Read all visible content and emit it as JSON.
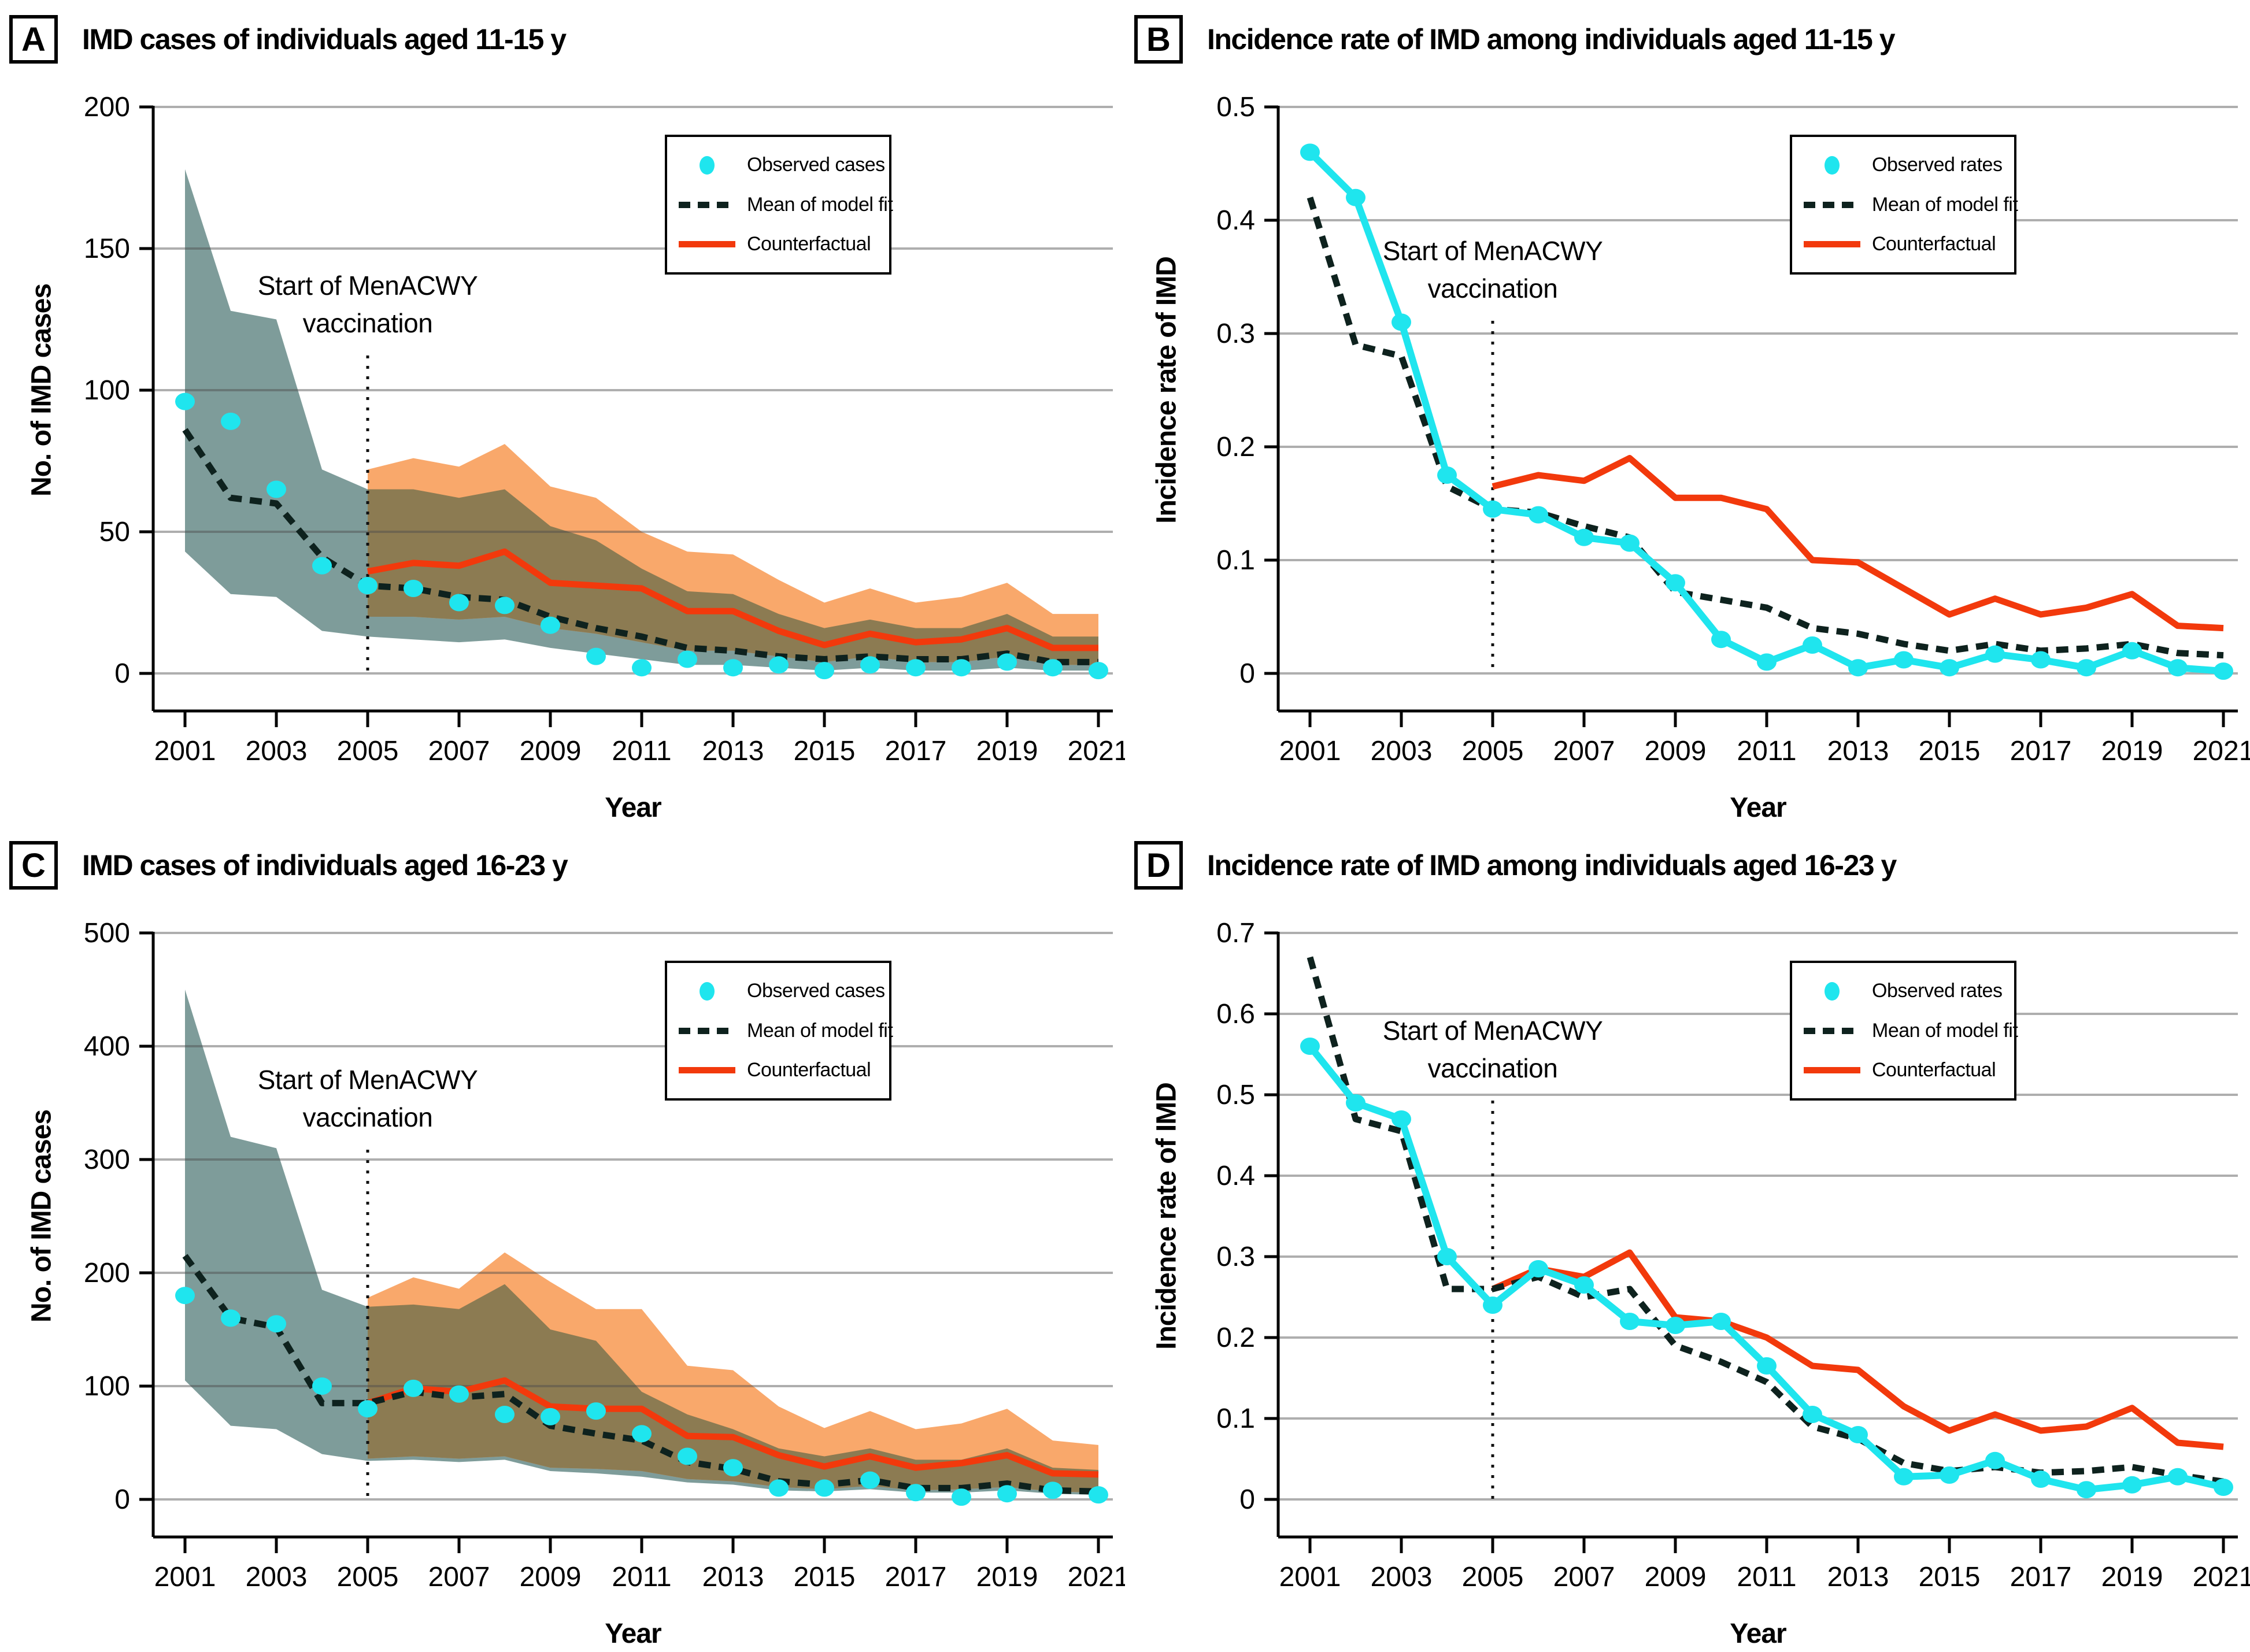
{
  "figure": {
    "background": "#FFFFFF",
    "annotation_text": "Start of MenACWY vaccination",
    "colors": {
      "observed": "#1FE5EE",
      "model_fit": "#0E221E",
      "counterfactual": "#F2390C",
      "fit_band": "#7E9C9A",
      "counterfactual_band": "#F9A86B",
      "band_overlap": "#8C7B52",
      "gridline": "#ABABAB",
      "axis": "#000000"
    }
  },
  "chart_data": [
    {
      "panel": "A",
      "type": "line",
      "title": "IMD cases of individuals aged 11-15 y",
      "xlabel": "Year",
      "ylabel": "No. of IMD cases",
      "x": [
        2001,
        2002,
        2003,
        2004,
        2005,
        2006,
        2007,
        2008,
        2009,
        2010,
        2011,
        2012,
        2013,
        2014,
        2015,
        2016,
        2017,
        2018,
        2019,
        2020,
        2021
      ],
      "x_ticks": [
        2001,
        2003,
        2005,
        2007,
        2009,
        2011,
        2013,
        2015,
        2017,
        2019,
        2021
      ],
      "ylim": [
        0,
        200
      ],
      "y_ticks": [
        0,
        50,
        100,
        150,
        200
      ],
      "y_tick_labels": [
        "0",
        "50",
        "100",
        "150",
        "200"
      ],
      "grid": true,
      "legend_position": "top-right",
      "vline_year": 2005,
      "annotation_lines": [
        "Start of MenACWY",
        "vaccination"
      ],
      "legend": [
        {
          "label": "Observed cases",
          "marker": "dot"
        },
        {
          "label": "Mean of model fit",
          "marker": "dashed"
        },
        {
          "label": "Counterfactual",
          "marker": "line"
        }
      ],
      "observed": {
        "connect": false,
        "values": [
          96,
          89,
          65,
          38,
          31,
          30,
          25,
          24,
          17,
          6,
          2,
          5,
          2,
          3,
          1,
          3,
          2,
          2,
          4,
          2,
          1
        ]
      },
      "fit": {
        "values": [
          86,
          62,
          60,
          41,
          31,
          30,
          27,
          26,
          20,
          16,
          13,
          9,
          8,
          6,
          5,
          6,
          5,
          5,
          7,
          4,
          4
        ]
      },
      "band_fit": {
        "upper": [
          178,
          128,
          125,
          72,
          65,
          65,
          62,
          65,
          52,
          47,
          37,
          29,
          28,
          21,
          16,
          19,
          16,
          16,
          21,
          13,
          13
        ],
        "lower": [
          43,
          28,
          27,
          15,
          13,
          12,
          11,
          12,
          9,
          7,
          5,
          3,
          3,
          2,
          1,
          2,
          1,
          1,
          2,
          1,
          1
        ]
      },
      "cf": {
        "x_start": 2005,
        "values": [
          36,
          39,
          38,
          43,
          32,
          31,
          30,
          22,
          22,
          15,
          10,
          14,
          11,
          12,
          16,
          9,
          9
        ]
      },
      "band_cf": {
        "x_start": 2005,
        "upper": [
          72,
          76,
          73,
          81,
          66,
          62,
          50,
          43,
          42,
          33,
          25,
          30,
          25,
          27,
          32,
          21,
          21
        ],
        "lower": [
          20,
          20,
          19,
          20,
          16,
          14,
          11,
          8,
          8,
          6,
          4,
          6,
          4,
          4,
          6,
          3,
          3
        ]
      }
    },
    {
      "panel": "B",
      "type": "line",
      "title": "Incidence rate of IMD among individuals aged 11-15 y",
      "xlabel": "Year",
      "ylabel": "Incidence rate of IMD",
      "x": [
        2001,
        2002,
        2003,
        2004,
        2005,
        2006,
        2007,
        2008,
        2009,
        2010,
        2011,
        2012,
        2013,
        2014,
        2015,
        2016,
        2017,
        2018,
        2019,
        2020,
        2021
      ],
      "x_ticks": [
        2001,
        2003,
        2005,
        2007,
        2009,
        2011,
        2013,
        2015,
        2017,
        2019,
        2021
      ],
      "ylim": [
        0,
        0.5
      ],
      "y_ticks": [
        0,
        0.1,
        0.2,
        0.3,
        0.4,
        0.5
      ],
      "y_tick_labels": [
        "0",
        "0.1",
        "0.2",
        "0.3",
        "0.4",
        "0.5"
      ],
      "grid": true,
      "legend_position": "top-right",
      "vline_year": 2005,
      "annotation_lines": [
        "Start of MenACWY",
        "vaccination"
      ],
      "legend": [
        {
          "label": "Observed rates",
          "marker": "dot"
        },
        {
          "label": "Mean of model fit",
          "marker": "dashed"
        },
        {
          "label": "Counterfactual",
          "marker": "line"
        }
      ],
      "observed": {
        "connect": true,
        "values": [
          0.46,
          0.42,
          0.31,
          0.175,
          0.145,
          0.14,
          0.12,
          0.115,
          0.08,
          0.03,
          0.01,
          0.025,
          0.005,
          0.012,
          0.005,
          0.017,
          0.012,
          0.005,
          0.02,
          0.005,
          0.002
        ]
      },
      "fit": {
        "values": [
          0.42,
          0.29,
          0.28,
          0.165,
          0.145,
          0.142,
          0.13,
          0.12,
          0.072,
          0.065,
          0.058,
          0.04,
          0.035,
          0.026,
          0.02,
          0.026,
          0.02,
          0.022,
          0.026,
          0.018,
          0.016
        ]
      },
      "cf": {
        "x_start": 2005,
        "values": [
          0.165,
          0.175,
          0.17,
          0.19,
          0.155,
          0.155,
          0.145,
          0.1,
          0.098,
          0.075,
          0.052,
          0.066,
          0.052,
          0.058,
          0.07,
          0.042,
          0.04
        ]
      }
    },
    {
      "panel": "C",
      "type": "line",
      "title": "IMD cases of individuals aged 16-23 y",
      "xlabel": "Year",
      "ylabel": "No. of IMD cases",
      "x": [
        2001,
        2002,
        2003,
        2004,
        2005,
        2006,
        2007,
        2008,
        2009,
        2010,
        2011,
        2012,
        2013,
        2014,
        2015,
        2016,
        2017,
        2018,
        2019,
        2020,
        2021
      ],
      "x_ticks": [
        2001,
        2003,
        2005,
        2007,
        2009,
        2011,
        2013,
        2015,
        2017,
        2019,
        2021
      ],
      "ylim": [
        0,
        500
      ],
      "y_ticks": [
        0,
        100,
        200,
        300,
        400,
        500
      ],
      "y_tick_labels": [
        "0",
        "100",
        "200",
        "300",
        "400",
        "500"
      ],
      "grid": true,
      "legend_position": "top-right",
      "vline_year": 2005,
      "annotation_lines": [
        "Start of MenACWY",
        "vaccination"
      ],
      "legend": [
        {
          "label": "Observed cases",
          "marker": "dot"
        },
        {
          "label": "Mean of model fit",
          "marker": "dashed"
        },
        {
          "label": "Counterfactual",
          "marker": "line"
        }
      ],
      "observed": {
        "connect": false,
        "values": [
          180,
          160,
          155,
          100,
          80,
          98,
          93,
          75,
          73,
          78,
          58,
          38,
          28,
          10,
          10,
          17,
          6,
          2,
          5,
          8,
          4
        ]
      },
      "fit": {
        "values": [
          215,
          160,
          152,
          85,
          85,
          95,
          90,
          93,
          65,
          58,
          52,
          33,
          27,
          16,
          13,
          17,
          10,
          10,
          14,
          8,
          7
        ]
      },
      "band_fit": {
        "upper": [
          450,
          320,
          310,
          185,
          170,
          172,
          168,
          190,
          150,
          140,
          95,
          75,
          62,
          45,
          38,
          45,
          35,
          35,
          45,
          28,
          26
        ],
        "lower": [
          105,
          65,
          62,
          40,
          34,
          35,
          33,
          35,
          25,
          23,
          20,
          15,
          13,
          8,
          7,
          9,
          6,
          6,
          8,
          5,
          4
        ]
      },
      "cf": {
        "x_start": 2005,
        "values": [
          85,
          98,
          95,
          105,
          82,
          80,
          80,
          56,
          55,
          39,
          29,
          38,
          28,
          32,
          39,
          23,
          22
        ]
      },
      "band_cf": {
        "x_start": 2005,
        "upper": [
          178,
          196,
          186,
          218,
          192,
          168,
          168,
          118,
          114,
          82,
          63,
          78,
          62,
          67,
          80,
          52,
          48
        ],
        "lower": [
          36,
          38,
          36,
          38,
          28,
          27,
          25,
          18,
          16,
          11,
          9,
          12,
          8,
          9,
          11,
          7,
          6
        ]
      }
    },
    {
      "panel": "D",
      "type": "line",
      "title": "Incidence rate of IMD among individuals aged 16-23 y",
      "xlabel": "Year",
      "ylabel": "Incidence rate of IMD",
      "x": [
        2001,
        2002,
        2003,
        2004,
        2005,
        2006,
        2007,
        2008,
        2009,
        2010,
        2011,
        2012,
        2013,
        2014,
        2015,
        2016,
        2017,
        2018,
        2019,
        2020,
        2021
      ],
      "x_ticks": [
        2001,
        2003,
        2005,
        2007,
        2009,
        2011,
        2013,
        2015,
        2017,
        2019,
        2021
      ],
      "ylim": [
        0,
        0.7
      ],
      "y_ticks": [
        0,
        0.1,
        0.2,
        0.3,
        0.4,
        0.5,
        0.6,
        0.7
      ],
      "y_tick_labels": [
        "0",
        "0.1",
        "0.2",
        "0.3",
        "0.4",
        "0.5",
        "0.6",
        "0.7"
      ],
      "grid": true,
      "legend_position": "top-right",
      "vline_year": 2005,
      "annotation_lines": [
        "Start of MenACWY",
        "vaccination"
      ],
      "legend": [
        {
          "label": "Observed rates",
          "marker": "dot"
        },
        {
          "label": "Mean of model fit",
          "marker": "dashed"
        },
        {
          "label": "Counterfactual",
          "marker": "line"
        }
      ],
      "observed": {
        "connect": true,
        "values": [
          0.56,
          0.49,
          0.47,
          0.3,
          0.24,
          0.285,
          0.265,
          0.22,
          0.215,
          0.22,
          0.165,
          0.105,
          0.08,
          0.028,
          0.03,
          0.048,
          0.025,
          0.012,
          0.018,
          0.028,
          0.015
        ]
      },
      "fit": {
        "values": [
          0.67,
          0.47,
          0.455,
          0.26,
          0.26,
          0.275,
          0.25,
          0.26,
          0.19,
          0.17,
          0.145,
          0.09,
          0.075,
          0.045,
          0.035,
          0.04,
          0.033,
          0.035,
          0.04,
          0.03,
          0.022
        ]
      },
      "cf": {
        "x_start": 2005,
        "values": [
          0.26,
          0.285,
          0.275,
          0.305,
          0.225,
          0.22,
          0.2,
          0.165,
          0.16,
          0.115,
          0.085,
          0.105,
          0.085,
          0.09,
          0.113,
          0.07,
          0.065
        ]
      }
    }
  ]
}
